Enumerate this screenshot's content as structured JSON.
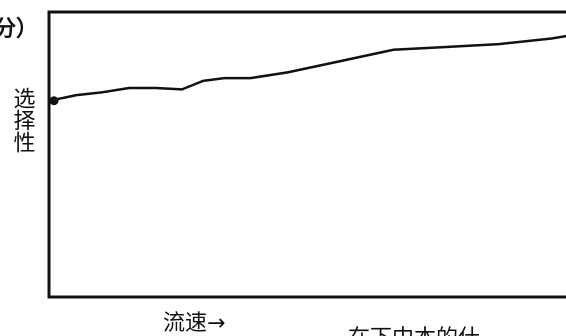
{
  "chart_data": {
    "type": "line",
    "top_fragment": "分）",
    "ylabel": "选择性",
    "xlabel": "流速→",
    "bottom_right_fragment": "在下中本的什",
    "grid": false,
    "legend": "none",
    "xlim": [
      0,
      100
    ],
    "ylim": [
      0,
      100
    ],
    "series": [
      {
        "x": [
          0,
          5,
          10,
          15,
          20,
          25,
          29,
          33,
          38,
          45,
          55,
          65,
          75,
          85,
          95,
          100
        ],
        "y": [
          69,
          71,
          72,
          73.5,
          73.5,
          73,
          76,
          77,
          77,
          79,
          83,
          87,
          88,
          89,
          91,
          92.5
        ]
      }
    ]
  }
}
